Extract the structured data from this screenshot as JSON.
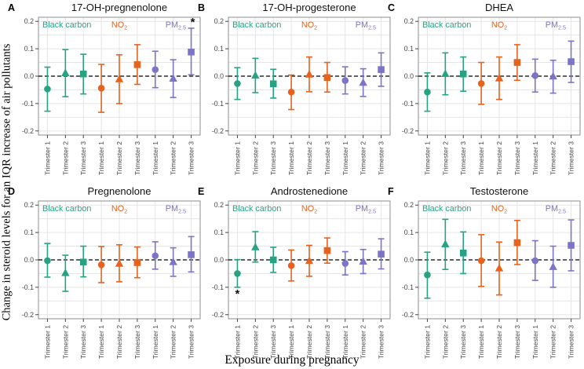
{
  "figure": {
    "y_axis_label": "Change in steroid levels for an IQR increase of air pollutants",
    "x_axis_label": "Exposure during pregnancy",
    "ytick_labels": [
      "0.2",
      "0.1",
      "0.0",
      "-0.1",
      "-0.2"
    ],
    "yticks": [
      0.2,
      0.1,
      0,
      -0.1,
      -0.2
    ],
    "ylim": [
      -0.215,
      0.215
    ],
    "marker_shapes": [
      "circle",
      "triangle",
      "square"
    ],
    "grid": true,
    "zero_line": "dashed",
    "colors": {
      "black_carbon": "#27A384",
      "no2": "#E8621D",
      "pm25": "#7C74C6",
      "gridline": "#E5E5E5",
      "panel_border": "#8C8C8C",
      "tick_text": "#454545",
      "zero_line": "#000000",
      "significance": "#111111"
    }
  },
  "chart_data": [
    {
      "type": "errorbar",
      "label": "A",
      "title": "17-OH-pregnenolone",
      "series": [
        {
          "name": "Black carbon",
          "sub": "",
          "color": "#27A384",
          "points": [
            {
              "trimester": "Trimester 1",
              "value": -0.047,
              "lo": -0.128,
              "hi": 0.033
            },
            {
              "trimester": "Trimester 2",
              "value": 0.012,
              "lo": -0.075,
              "hi": 0.097
            },
            {
              "trimester": "Trimester 3",
              "value": 0.008,
              "lo": -0.065,
              "hi": 0.08
            }
          ]
        },
        {
          "name": "NO",
          "sub": "2",
          "color": "#E8621D",
          "points": [
            {
              "trimester": "Trimester 1",
              "value": -0.044,
              "lo": -0.132,
              "hi": 0.043
            },
            {
              "trimester": "Trimester 2",
              "value": -0.01,
              "lo": -0.1,
              "hi": 0.078
            },
            {
              "trimester": "Trimester 3",
              "value": 0.042,
              "lo": -0.03,
              "hi": 0.115
            }
          ]
        },
        {
          "name": "PM",
          "sub": "2.5",
          "color": "#7C74C6",
          "points": [
            {
              "trimester": "Trimester 1",
              "value": 0.024,
              "lo": -0.042,
              "hi": 0.091
            },
            {
              "trimester": "Trimester 2",
              "value": -0.008,
              "lo": -0.078,
              "hi": 0.06
            },
            {
              "trimester": "Trimester 3",
              "value": 0.088,
              "lo": 0.005,
              "hi": 0.175
            }
          ]
        }
      ],
      "significance": [
        {
          "symbol": "*",
          "series_index": 2,
          "point_index": 2,
          "position": "above"
        }
      ]
    },
    {
      "type": "errorbar",
      "label": "B",
      "title": "17-OH-progesterone",
      "series": [
        {
          "name": "Black carbon",
          "sub": "",
          "color": "#27A384",
          "points": [
            {
              "trimester": "Trimester 1",
              "value": -0.027,
              "lo": -0.085,
              "hi": 0.031
            },
            {
              "trimester": "Trimester 2",
              "value": 0.003,
              "lo": -0.06,
              "hi": 0.065
            },
            {
              "trimester": "Trimester 3",
              "value": -0.028,
              "lo": -0.08,
              "hi": 0.025
            }
          ]
        },
        {
          "name": "NO",
          "sub": "2",
          "color": "#E8621D",
          "points": [
            {
              "trimester": "Trimester 1",
              "value": -0.058,
              "lo": -0.122,
              "hi": 0.004
            },
            {
              "trimester": "Trimester 2",
              "value": 0.007,
              "lo": -0.057,
              "hi": 0.07
            },
            {
              "trimester": "Trimester 3",
              "value": -0.005,
              "lo": -0.058,
              "hi": 0.05
            }
          ]
        },
        {
          "name": "PM",
          "sub": "2.5",
          "color": "#7C74C6",
          "points": [
            {
              "trimester": "Trimester 1",
              "value": -0.016,
              "lo": -0.065,
              "hi": 0.034
            },
            {
              "trimester": "Trimester 2",
              "value": -0.023,
              "lo": -0.074,
              "hi": 0.027
            },
            {
              "trimester": "Trimester 3",
              "value": 0.024,
              "lo": -0.037,
              "hi": 0.085
            }
          ]
        }
      ],
      "significance": []
    },
    {
      "type": "errorbar",
      "label": "C",
      "title": "DHEA",
      "series": [
        {
          "name": "Black carbon",
          "sub": "",
          "color": "#27A384",
          "points": [
            {
              "trimester": "Trimester 1",
              "value": -0.058,
              "lo": -0.128,
              "hi": 0.012
            },
            {
              "trimester": "Trimester 2",
              "value": 0.009,
              "lo": -0.068,
              "hi": 0.085
            },
            {
              "trimester": "Trimester 3",
              "value": 0.008,
              "lo": -0.055,
              "hi": 0.07
            }
          ]
        },
        {
          "name": "NO",
          "sub": "2",
          "color": "#E8621D",
          "points": [
            {
              "trimester": "Trimester 1",
              "value": -0.027,
              "lo": -0.103,
              "hi": 0.05
            },
            {
              "trimester": "Trimester 2",
              "value": -0.007,
              "lo": -0.085,
              "hi": 0.07
            },
            {
              "trimester": "Trimester 3",
              "value": 0.05,
              "lo": -0.015,
              "hi": 0.115
            }
          ]
        },
        {
          "name": "PM",
          "sub": "2.5",
          "color": "#7C74C6",
          "points": [
            {
              "trimester": "Trimester 1",
              "value": 0.002,
              "lo": -0.058,
              "hi": 0.062
            },
            {
              "trimester": "Trimester 2",
              "value": 0.0,
              "lo": -0.062,
              "hi": 0.058
            },
            {
              "trimester": "Trimester 3",
              "value": 0.053,
              "lo": -0.023,
              "hi": 0.128
            }
          ]
        }
      ],
      "significance": []
    },
    {
      "type": "errorbar",
      "label": "D",
      "title": "Pregnenolone",
      "series": [
        {
          "name": "Black carbon",
          "sub": "",
          "color": "#27A384",
          "points": [
            {
              "trimester": "Trimester 1",
              "value": -0.003,
              "lo": -0.063,
              "hi": 0.06
            },
            {
              "trimester": "Trimester 2",
              "value": -0.047,
              "lo": -0.115,
              "hi": 0.017
            },
            {
              "trimester": "Trimester 3",
              "value": -0.008,
              "lo": -0.062,
              "hi": 0.05
            }
          ]
        },
        {
          "name": "NO",
          "sub": "2",
          "color": "#E8621D",
          "points": [
            {
              "trimester": "Trimester 1",
              "value": -0.018,
              "lo": -0.083,
              "hi": 0.049
            },
            {
              "trimester": "Trimester 2",
              "value": -0.013,
              "lo": -0.08,
              "hi": 0.055
            },
            {
              "trimester": "Trimester 3",
              "value": -0.01,
              "lo": -0.065,
              "hi": 0.047
            }
          ]
        },
        {
          "name": "PM",
          "sub": "2.5",
          "color": "#7C74C6",
          "points": [
            {
              "trimester": "Trimester 1",
              "value": 0.015,
              "lo": -0.034,
              "hi": 0.066
            },
            {
              "trimester": "Trimester 2",
              "value": -0.007,
              "lo": -0.06,
              "hi": 0.044
            },
            {
              "trimester": "Trimester 3",
              "value": 0.019,
              "lo": -0.044,
              "hi": 0.085
            }
          ]
        }
      ],
      "significance": []
    },
    {
      "type": "errorbar",
      "label": "E",
      "title": "Androstenedione",
      "series": [
        {
          "name": "Black carbon",
          "sub": "",
          "color": "#27A384",
          "points": [
            {
              "trimester": "Trimester 1",
              "value": -0.05,
              "lo": -0.1,
              "hi": 0.001
            },
            {
              "trimester": "Trimester 2",
              "value": 0.047,
              "lo": -0.008,
              "hi": 0.103
            },
            {
              "trimester": "Trimester 3",
              "value": 0.0,
              "lo": -0.046,
              "hi": 0.046
            }
          ]
        },
        {
          "name": "NO",
          "sub": "2",
          "color": "#E8621D",
          "points": [
            {
              "trimester": "Trimester 1",
              "value": -0.021,
              "lo": -0.077,
              "hi": 0.036
            },
            {
              "trimester": "Trimester 2",
              "value": -0.003,
              "lo": -0.06,
              "hi": 0.053
            },
            {
              "trimester": "Trimester 3",
              "value": 0.034,
              "lo": -0.012,
              "hi": 0.08
            }
          ]
        },
        {
          "name": "PM",
          "sub": "2.5",
          "color": "#7C74C6",
          "points": [
            {
              "trimester": "Trimester 1",
              "value": -0.013,
              "lo": -0.055,
              "hi": 0.03
            },
            {
              "trimester": "Trimester 2",
              "value": -0.005,
              "lo": -0.05,
              "hi": 0.038
            },
            {
              "trimester": "Trimester 3",
              "value": 0.021,
              "lo": -0.033,
              "hi": 0.077
            }
          ]
        }
      ],
      "significance": [
        {
          "symbol": "*",
          "series_index": 0,
          "point_index": 0,
          "position": "below"
        }
      ]
    },
    {
      "type": "errorbar",
      "label": "F",
      "title": "Testosterone",
      "series": [
        {
          "name": "Black carbon",
          "sub": "",
          "color": "#27A384",
          "points": [
            {
              "trimester": "Trimester 1",
              "value": -0.055,
              "lo": -0.14,
              "hi": 0.028
            },
            {
              "trimester": "Trimester 2",
              "value": 0.058,
              "lo": -0.035,
              "hi": 0.148
            },
            {
              "trimester": "Trimester 3",
              "value": 0.025,
              "lo": -0.05,
              "hi": 0.102
            }
          ]
        },
        {
          "name": "NO",
          "sub": "2",
          "color": "#E8621D",
          "points": [
            {
              "trimester": "Trimester 1",
              "value": -0.003,
              "lo": -0.097,
              "hi": 0.092
            },
            {
              "trimester": "Trimester 2",
              "value": -0.03,
              "lo": -0.128,
              "hi": 0.065
            },
            {
              "trimester": "Trimester 3",
              "value": 0.063,
              "lo": -0.017,
              "hi": 0.144
            }
          ]
        },
        {
          "name": "PM",
          "sub": "2.5",
          "color": "#7C74C6",
          "points": [
            {
              "trimester": "Trimester 1",
              "value": -0.003,
              "lo": -0.075,
              "hi": 0.07
            },
            {
              "trimester": "Trimester 2",
              "value": -0.025,
              "lo": -0.1,
              "hi": 0.05
            },
            {
              "trimester": "Trimester 3",
              "value": 0.053,
              "lo": -0.04,
              "hi": 0.146
            }
          ]
        }
      ],
      "significance": []
    }
  ]
}
